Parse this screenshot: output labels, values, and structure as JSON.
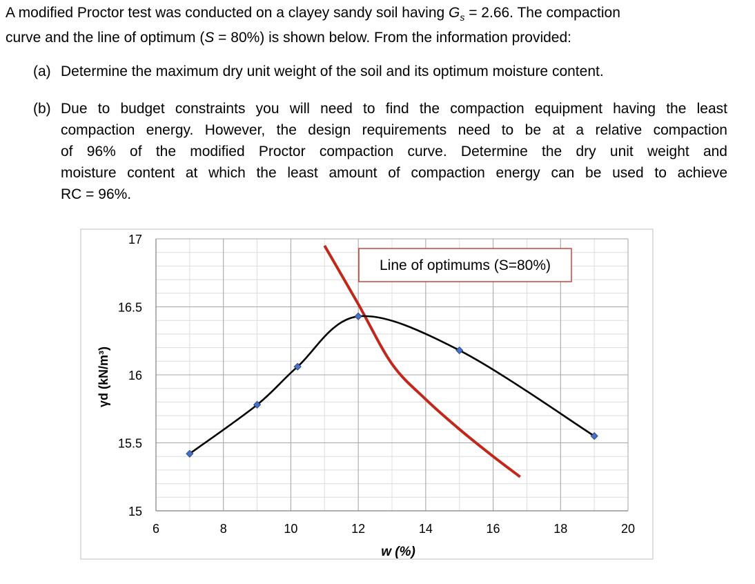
{
  "problem": {
    "intro_1a": "A modified Proctor test was conducted on a clayey sandy soil having ",
    "gs_symbol": "G",
    "gs_sub": "s",
    "intro_1b": " = 2.66. The compaction",
    "intro_2a": "curve and the line of optimum (",
    "s_symbol": "S",
    "intro_2b": " = 80%) is shown below. From the information provided:",
    "part_a_label": "(a)",
    "part_a_text": "Determine the maximum dry unit weight of the soil and its optimum moisture content.",
    "part_b_label": "(b)",
    "part_b_lines": [
      "Due to budget constraints you will need to find the compaction equipment having the least",
      "compaction energy. However, the design requirements need to be at a relative compaction",
      "of 96% of the modified Proctor compaction curve. Determine the dry unit weight and",
      "moisture content at which the least amount of compaction energy can be used to achieve",
      "RC = 96%."
    ]
  },
  "chart_data": {
    "type": "line",
    "xlabel": "w (%)",
    "ylabel": "γd (kN/m³)",
    "xlim": [
      6,
      20
    ],
    "ylim": [
      15,
      17
    ],
    "x_ticks": [
      "6",
      "8",
      "10",
      "12",
      "14",
      "16",
      "18",
      "20"
    ],
    "y_ticks": [
      "15",
      "15.5",
      "16",
      "16.5",
      "17"
    ],
    "grid": true,
    "series": [
      {
        "color": "#000000",
        "marker_color": "#4a72c4",
        "points": [
          [
            7,
            15.42
          ],
          [
            9,
            15.78
          ],
          [
            10.2,
            16.06
          ],
          [
            12,
            16.43
          ],
          [
            15,
            16.18
          ],
          [
            19,
            15.55
          ]
        ]
      },
      {
        "name": "Line of optimums (S=80%)",
        "color": "#c0281c",
        "points": [
          [
            11,
            16.95
          ],
          [
            12,
            16.52
          ],
          [
            13,
            16.08
          ],
          [
            14,
            15.82
          ],
          [
            15,
            15.6
          ],
          [
            16,
            15.4
          ],
          [
            16.8,
            15.25
          ]
        ]
      }
    ],
    "annotation": "Line of optimums (S=80%)"
  }
}
